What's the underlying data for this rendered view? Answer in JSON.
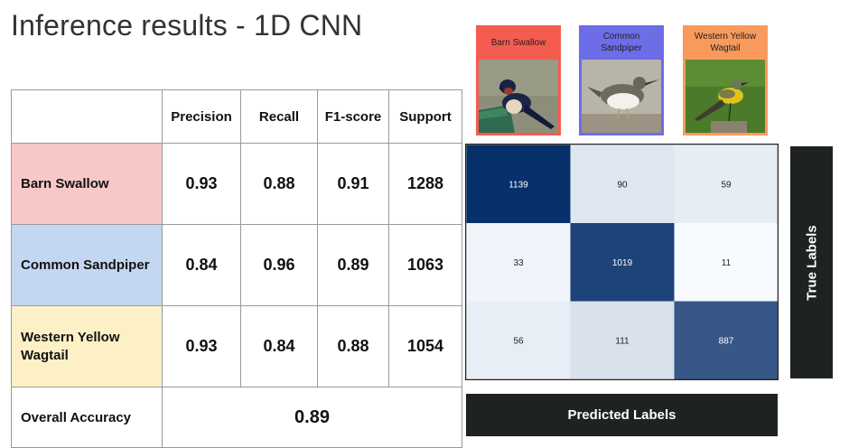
{
  "title": "Inference results - 1D CNN",
  "table": {
    "headers": [
      "",
      "Precision",
      "Recall",
      "F1-score",
      "Support"
    ],
    "rows": [
      {
        "label": "Barn Swallow",
        "values": [
          "0.93",
          "0.88",
          "0.91",
          "1288"
        ],
        "color": "#f8c7c8"
      },
      {
        "label": "Common Sandpiper",
        "values": [
          "0.84",
          "0.96",
          "0.89",
          "1063"
        ],
        "color": "#c3d6f2"
      },
      {
        "label": "Western Yellow Wagtail",
        "values": [
          "0.93",
          "0.84",
          "0.88",
          "1054"
        ],
        "color": "#fdf0c7"
      }
    ],
    "accuracy_label": "Overall Accuracy",
    "accuracy_value": "0.89"
  },
  "cards": [
    {
      "label": "Barn Swallow",
      "color": "#f45c4f",
      "icon": "barn-swallow-photo"
    },
    {
      "label": "Common Sandpiper",
      "color": "#6d6de8",
      "icon": "common-sandpiper-photo"
    },
    {
      "label": "Western Yellow Wagtail",
      "color": "#f99a5c",
      "icon": "western-yellow-wagtail-photo"
    }
  ],
  "chart_data": {
    "type": "heatmap",
    "title": "",
    "xlabel": "Predicted Labels",
    "ylabel": "True Labels",
    "values": [
      [
        1139,
        90,
        59
      ],
      [
        33,
        1019,
        11
      ],
      [
        56,
        111,
        887
      ]
    ],
    "colormap": "Blues"
  }
}
